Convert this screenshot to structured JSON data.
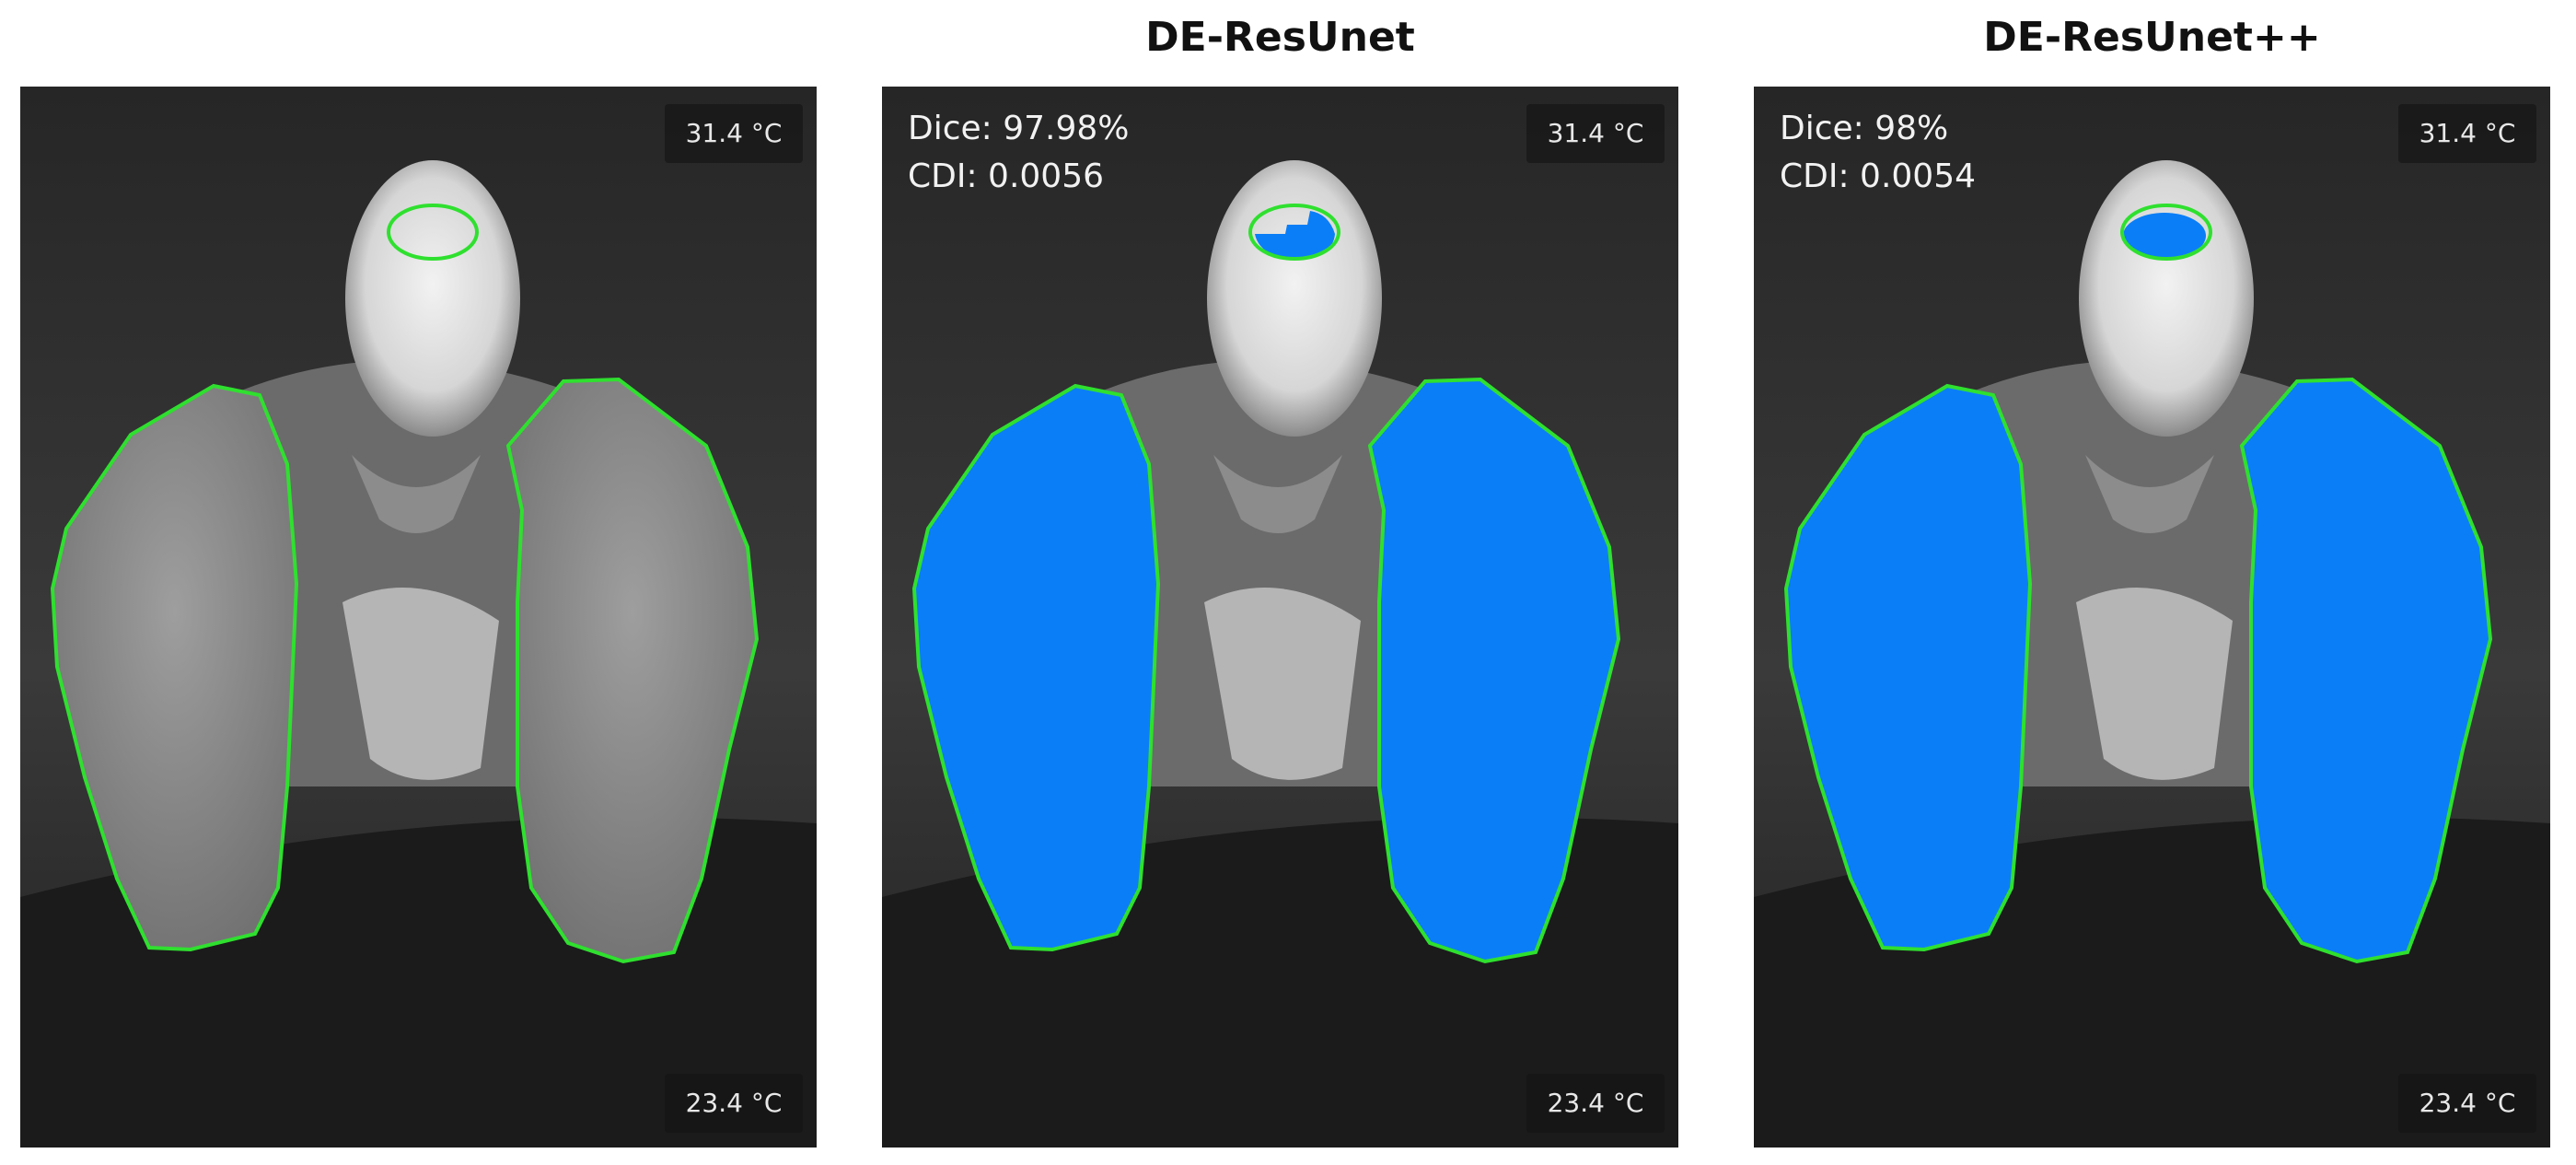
{
  "panels": [
    {
      "id": "ground-truth",
      "title": "",
      "temp_max": "31.4 °C",
      "temp_min": "23.4 °C",
      "dice": "",
      "cdi": "",
      "show_prediction": false
    },
    {
      "id": "de-resunet",
      "title": "DE-ResUnet",
      "temp_max": "31.4 °C",
      "temp_min": "23.4 °C",
      "dice": "Dice: 97.98%",
      "cdi": "CDI: 0.0056",
      "show_prediction": true
    },
    {
      "id": "de-resunet-plus-plus",
      "title": "DE-ResUnet++",
      "temp_max": "31.4 °C",
      "temp_min": "23.4 °C",
      "dice": "Dice: 98%",
      "cdi": "CDI: 0.0054",
      "show_prediction": true
    }
  ],
  "colors": {
    "ground_truth_outline": "#2fe02f",
    "prediction_fill": "#0a7ef7",
    "thermal_background": "#2b2b2b",
    "temp_label_bg": "#1a1a1a"
  }
}
